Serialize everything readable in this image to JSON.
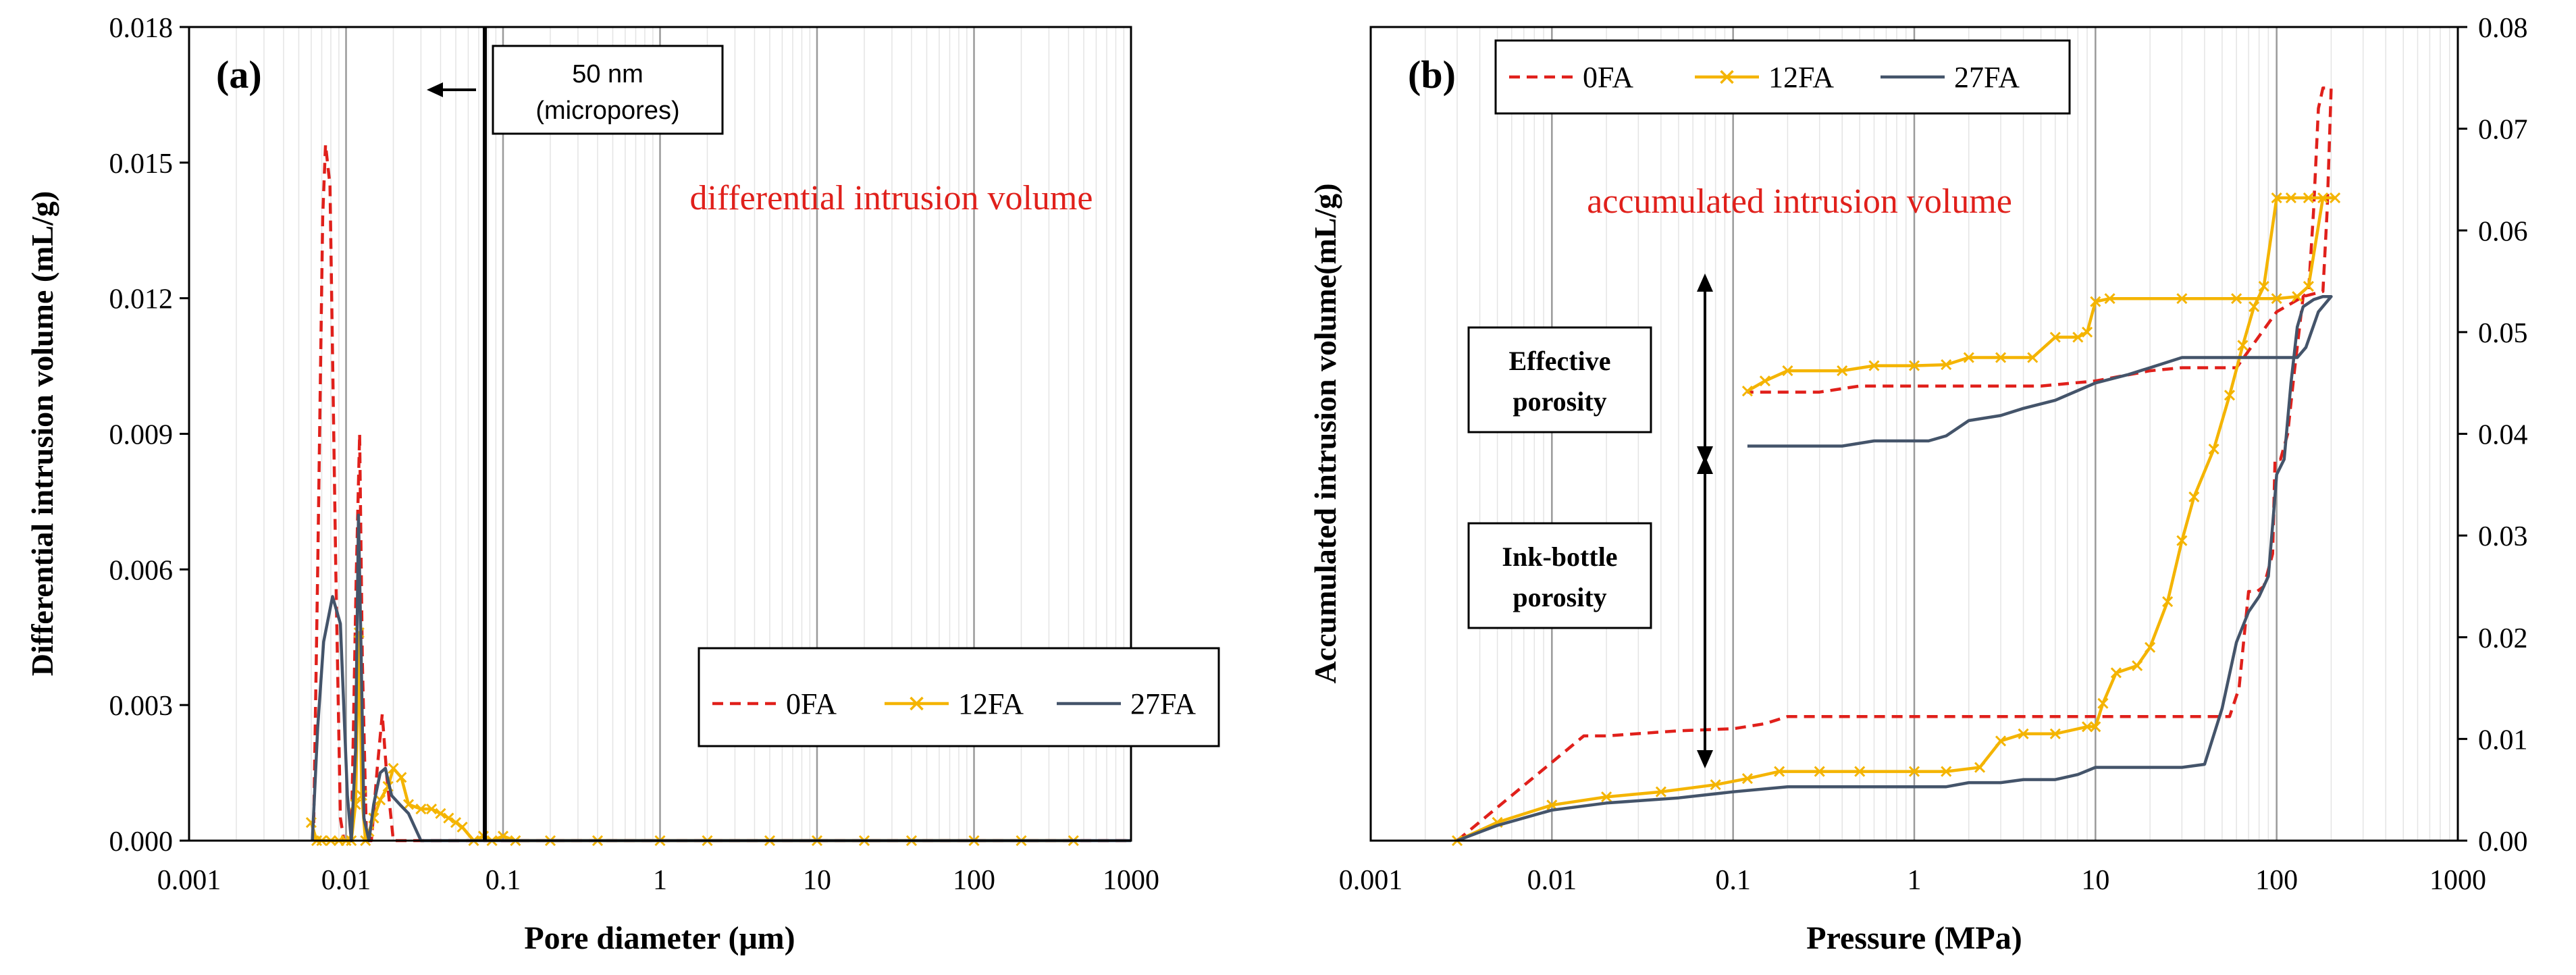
{
  "chart_data": [
    {
      "id": "a",
      "type": "line",
      "xscale": "log",
      "panel_label": "(a)",
      "title": "differential intrusion volume",
      "xlabel": "Pore diameter (μm)",
      "ylabel": "Differential intrusion volume (mL/g)",
      "xlim": [
        0.001,
        1000
      ],
      "ylim": [
        0,
        0.018
      ],
      "x_ticks": [
        0.001,
        0.01,
        0.1,
        1,
        10,
        100,
        1000
      ],
      "x_tick_labels": [
        "0.001",
        "0.01",
        "0.1",
        "1",
        "10",
        "100",
        "1000"
      ],
      "y_ticks": [
        0,
        0.003,
        0.006,
        0.009,
        0.012,
        0.015,
        0.018
      ],
      "y_tick_labels": [
        "0.000",
        "0.003",
        "0.006",
        "0.009",
        "0.012",
        "0.015",
        "0.018"
      ],
      "vertical_line": {
        "x": 0.05
      },
      "annotation_box": {
        "line1": "50 nm",
        "line2": "(micropores)",
        "arrow": "←"
      },
      "legend": {
        "position": "lower-right",
        "entries": [
          "0FA",
          "12FA",
          "27FA"
        ]
      },
      "series": [
        {
          "name": "0FA",
          "color": "#e0201b",
          "style": "dashed",
          "points": [
            [
              0.0062,
              0.0
            ],
            [
              0.0066,
              0.006
            ],
            [
              0.0071,
              0.0138
            ],
            [
              0.0074,
              0.0154
            ],
            [
              0.0079,
              0.0145
            ],
            [
              0.0086,
              0.006
            ],
            [
              0.0092,
              0.0005
            ],
            [
              0.0097,
              0.0
            ],
            [
              0.0108,
              0.0
            ],
            [
              0.0116,
              0.0058
            ],
            [
              0.0122,
              0.009
            ],
            [
              0.0127,
              0.004
            ],
            [
              0.0135,
              0.0
            ],
            [
              0.0145,
              0.0
            ],
            [
              0.0158,
              0.0016
            ],
            [
              0.017,
              0.0028
            ],
            [
              0.0182,
              0.0014
            ],
            [
              0.02,
              0.0
            ],
            [
              1000,
              0.0
            ]
          ]
        },
        {
          "name": "12FA",
          "color": "#f4b400",
          "style": "solid-x",
          "points": [
            [
              0.006,
              0.0004
            ],
            [
              0.0065,
              0.0
            ],
            [
              0.007,
              0.0
            ],
            [
              0.008,
              0.0
            ],
            [
              0.009,
              0.0
            ],
            [
              0.01,
              0.0
            ],
            [
              0.0108,
              0.0
            ],
            [
              0.0115,
              0.0008
            ],
            [
              0.0121,
              0.0046
            ],
            [
              0.0126,
              0.001
            ],
            [
              0.0133,
              0.0
            ],
            [
              0.014,
              0.0002
            ],
            [
              0.015,
              0.0005
            ],
            [
              0.0165,
              0.0009
            ],
            [
              0.0185,
              0.0012
            ],
            [
              0.02,
              0.0016
            ],
            [
              0.0225,
              0.0014
            ],
            [
              0.025,
              0.0008
            ],
            [
              0.03,
              0.0007
            ],
            [
              0.035,
              0.0007
            ],
            [
              0.04,
              0.0006
            ],
            [
              0.045,
              0.0005
            ],
            [
              0.05,
              0.0004
            ],
            [
              0.055,
              0.0003
            ],
            [
              0.065,
              0.0
            ],
            [
              0.075,
              0.0001
            ],
            [
              0.085,
              0.0
            ],
            [
              0.1,
              0.0001
            ],
            [
              0.12,
              0.0
            ],
            [
              0.2,
              0.0
            ],
            [
              0.4,
              0.0
            ],
            [
              1,
              0.0
            ],
            [
              2,
              0.0
            ],
            [
              5,
              0.0
            ],
            [
              10,
              0.0
            ],
            [
              20,
              0.0
            ],
            [
              40,
              0.0
            ],
            [
              100,
              0.0
            ],
            [
              200,
              0.0
            ],
            [
              430,
              0.0
            ]
          ]
        },
        {
          "name": "27FA",
          "color": "#44546a",
          "style": "solid",
          "points": [
            [
              0.0061,
              0.0
            ],
            [
              0.0066,
              0.0025
            ],
            [
              0.0072,
              0.0044
            ],
            [
              0.0082,
              0.0054
            ],
            [
              0.0092,
              0.0048
            ],
            [
              0.0102,
              0.001
            ],
            [
              0.0108,
              0.0
            ],
            [
              0.0115,
              0.002
            ],
            [
              0.012,
              0.0072
            ],
            [
              0.0125,
              0.004
            ],
            [
              0.013,
              0.0005
            ],
            [
              0.014,
              0.0
            ],
            [
              0.015,
              0.0008
            ],
            [
              0.0165,
              0.0015
            ],
            [
              0.0178,
              0.0016
            ],
            [
              0.0195,
              0.001
            ],
            [
              0.022,
              0.0008
            ],
            [
              0.025,
              0.0006
            ],
            [
              0.03,
              0.0
            ],
            [
              1000,
              0.0
            ]
          ]
        }
      ]
    },
    {
      "id": "b",
      "type": "line",
      "xscale": "log",
      "panel_label": "(b)",
      "title": "accumulated intrusion volume",
      "xlabel": "Pressure (MPa)",
      "ylabel": "Accumulated intrusion volume(mL/g)",
      "xlim": [
        0.001,
        1000
      ],
      "ylim": [
        0,
        0.08
      ],
      "y_axis_side": "right",
      "x_ticks": [
        0.001,
        0.01,
        0.1,
        1,
        10,
        100,
        1000
      ],
      "x_tick_labels": [
        "0.001",
        "0.01",
        "0.1",
        "1",
        "10",
        "100",
        "1000"
      ],
      "y_ticks": [
        0,
        0.01,
        0.02,
        0.03,
        0.04,
        0.05,
        0.06,
        0.07,
        0.08
      ],
      "y_tick_labels": [
        "0.00",
        "0.01",
        "0.02",
        "0.03",
        "0.04",
        "0.05",
        "0.06",
        "0.07",
        "0.08"
      ],
      "legend": {
        "position": "top-left",
        "entries": [
          "0FA",
          "12FA",
          "27FA"
        ]
      },
      "annotations": [
        {
          "label": "Effective porosity",
          "lines": [
            "Effective",
            "porosity"
          ]
        },
        {
          "label": "Ink-bottle porosity",
          "lines": [
            "Ink-bottle",
            "porosity"
          ]
        }
      ],
      "series": [
        {
          "name": "0FA",
          "color": "#e0201b",
          "style": "dashed",
          "points": [
            [
              0.003,
              0.0
            ],
            [
              0.015,
              0.0103
            ],
            [
              0.02,
              0.0103
            ],
            [
              0.05,
              0.0108
            ],
            [
              0.1,
              0.011
            ],
            [
              0.15,
              0.0115
            ],
            [
              0.2,
              0.0122
            ],
            [
              0.5,
              0.0122
            ],
            [
              1,
              0.0122
            ],
            [
              2,
              0.0122
            ],
            [
              5,
              0.0122
            ],
            [
              10,
              0.0122
            ],
            [
              20,
              0.0122
            ],
            [
              40,
              0.0122
            ],
            [
              55,
              0.0122
            ],
            [
              62,
              0.015
            ],
            [
              70,
              0.0245
            ],
            [
              78,
              0.0245
            ],
            [
              85,
              0.025
            ],
            [
              95,
              0.0282
            ],
            [
              98,
              0.0375
            ],
            [
              105,
              0.0375
            ],
            [
              115,
              0.04
            ],
            [
              125,
              0.046
            ],
            [
              140,
              0.0535
            ],
            [
              150,
              0.054
            ],
            [
              160,
              0.062
            ],
            [
              170,
              0.072
            ],
            [
              180,
              0.074
            ],
            [
              200,
              0.074
            ],
            [
              190,
              0.062
            ],
            [
              180,
              0.054
            ],
            [
              140,
              0.0535
            ],
            [
              100,
              0.052
            ],
            [
              60,
              0.0465
            ],
            [
              30,
              0.0465
            ],
            [
              20,
              0.0462
            ],
            [
              10,
              0.0452
            ],
            [
              5,
              0.0447
            ],
            [
              2,
              0.0447
            ],
            [
              1,
              0.0447
            ],
            [
              0.5,
              0.0447
            ],
            [
              0.3,
              0.0441
            ],
            [
              0.12,
              0.0441
            ]
          ]
        },
        {
          "name": "12FA",
          "color": "#f4b400",
          "style": "solid-x",
          "points": [
            [
              0.003,
              0.0
            ],
            [
              0.005,
              0.0018
            ],
            [
              0.01,
              0.0035
            ],
            [
              0.02,
              0.0043
            ],
            [
              0.04,
              0.0048
            ],
            [
              0.08,
              0.0055
            ],
            [
              0.12,
              0.0061
            ],
            [
              0.18,
              0.0068
            ],
            [
              0.3,
              0.0068
            ],
            [
              0.5,
              0.0068
            ],
            [
              1,
              0.0068
            ],
            [
              1.5,
              0.0068
            ],
            [
              2.3,
              0.0072
            ],
            [
              3,
              0.0098
            ],
            [
              4,
              0.0105
            ],
            [
              6,
              0.0105
            ],
            [
              9,
              0.0112
            ],
            [
              10,
              0.0112
            ],
            [
              11,
              0.0135
            ],
            [
              13,
              0.0165
            ],
            [
              17,
              0.0172
            ],
            [
              20,
              0.019
            ],
            [
              25,
              0.0235
            ],
            [
              30,
              0.0295
            ],
            [
              35,
              0.0338
            ],
            [
              45,
              0.0385
            ],
            [
              55,
              0.0438
            ],
            [
              65,
              0.0487
            ],
            [
              75,
              0.0525
            ],
            [
              85,
              0.0545
            ],
            [
              100,
              0.0632
            ],
            [
              120,
              0.0632
            ],
            [
              150,
              0.0632
            ],
            [
              210,
              0.0632
            ],
            [
              180,
              0.0632
            ],
            [
              150,
              0.0545
            ],
            [
              130,
              0.0535
            ],
            [
              100,
              0.0533
            ],
            [
              60,
              0.0533
            ],
            [
              30,
              0.0533
            ],
            [
              12,
              0.0533
            ],
            [
              10,
              0.053
            ],
            [
              9,
              0.05
            ],
            [
              8,
              0.0495
            ],
            [
              6,
              0.0495
            ],
            [
              4.5,
              0.0475
            ],
            [
              3,
              0.0475
            ],
            [
              2,
              0.0475
            ],
            [
              1.5,
              0.0468
            ],
            [
              1,
              0.0467
            ],
            [
              0.6,
              0.0467
            ],
            [
              0.4,
              0.0462
            ],
            [
              0.2,
              0.0462
            ],
            [
              0.15,
              0.0452
            ],
            [
              0.12,
              0.0442
            ]
          ]
        },
        {
          "name": "27FA",
          "color": "#44546a",
          "style": "solid",
          "points": [
            [
              0.003,
              0.0
            ],
            [
              0.005,
              0.0015
            ],
            [
              0.01,
              0.003
            ],
            [
              0.02,
              0.0037
            ],
            [
              0.05,
              0.0042
            ],
            [
              0.1,
              0.0048
            ],
            [
              0.2,
              0.0053
            ],
            [
              0.5,
              0.0053
            ],
            [
              1,
              0.0053
            ],
            [
              1.5,
              0.0053
            ],
            [
              2,
              0.0057
            ],
            [
              3,
              0.0057
            ],
            [
              4,
              0.006
            ],
            [
              6,
              0.006
            ],
            [
              8,
              0.0065
            ],
            [
              10,
              0.0072
            ],
            [
              15,
              0.0072
            ],
            [
              20,
              0.0072
            ],
            [
              30,
              0.0072
            ],
            [
              40,
              0.0075
            ],
            [
              50,
              0.013
            ],
            [
              60,
              0.0195
            ],
            [
              70,
              0.0225
            ],
            [
              80,
              0.024
            ],
            [
              90,
              0.026
            ],
            [
              95,
              0.031
            ],
            [
              100,
              0.036
            ],
            [
              110,
              0.0375
            ],
            [
              120,
              0.045
            ],
            [
              130,
              0.0505
            ],
            [
              140,
              0.0525
            ],
            [
              160,
              0.0532
            ],
            [
              180,
              0.0535
            ],
            [
              200,
              0.0535
            ],
            [
              170,
              0.052
            ],
            [
              145,
              0.0485
            ],
            [
              130,
              0.0475
            ],
            [
              100,
              0.0475
            ],
            [
              60,
              0.0475
            ],
            [
              30,
              0.0475
            ],
            [
              20,
              0.0465
            ],
            [
              15,
              0.0458
            ],
            [
              10,
              0.045
            ],
            [
              6,
              0.0433
            ],
            [
              4,
              0.0425
            ],
            [
              3,
              0.0418
            ],
            [
              2,
              0.0413
            ],
            [
              1.5,
              0.0398
            ],
            [
              1.2,
              0.0393
            ],
            [
              1,
              0.0393
            ],
            [
              0.6,
              0.0393
            ],
            [
              0.4,
              0.0388
            ],
            [
              0.2,
              0.0388
            ],
            [
              0.12,
              0.0388
            ]
          ]
        }
      ]
    }
  ]
}
